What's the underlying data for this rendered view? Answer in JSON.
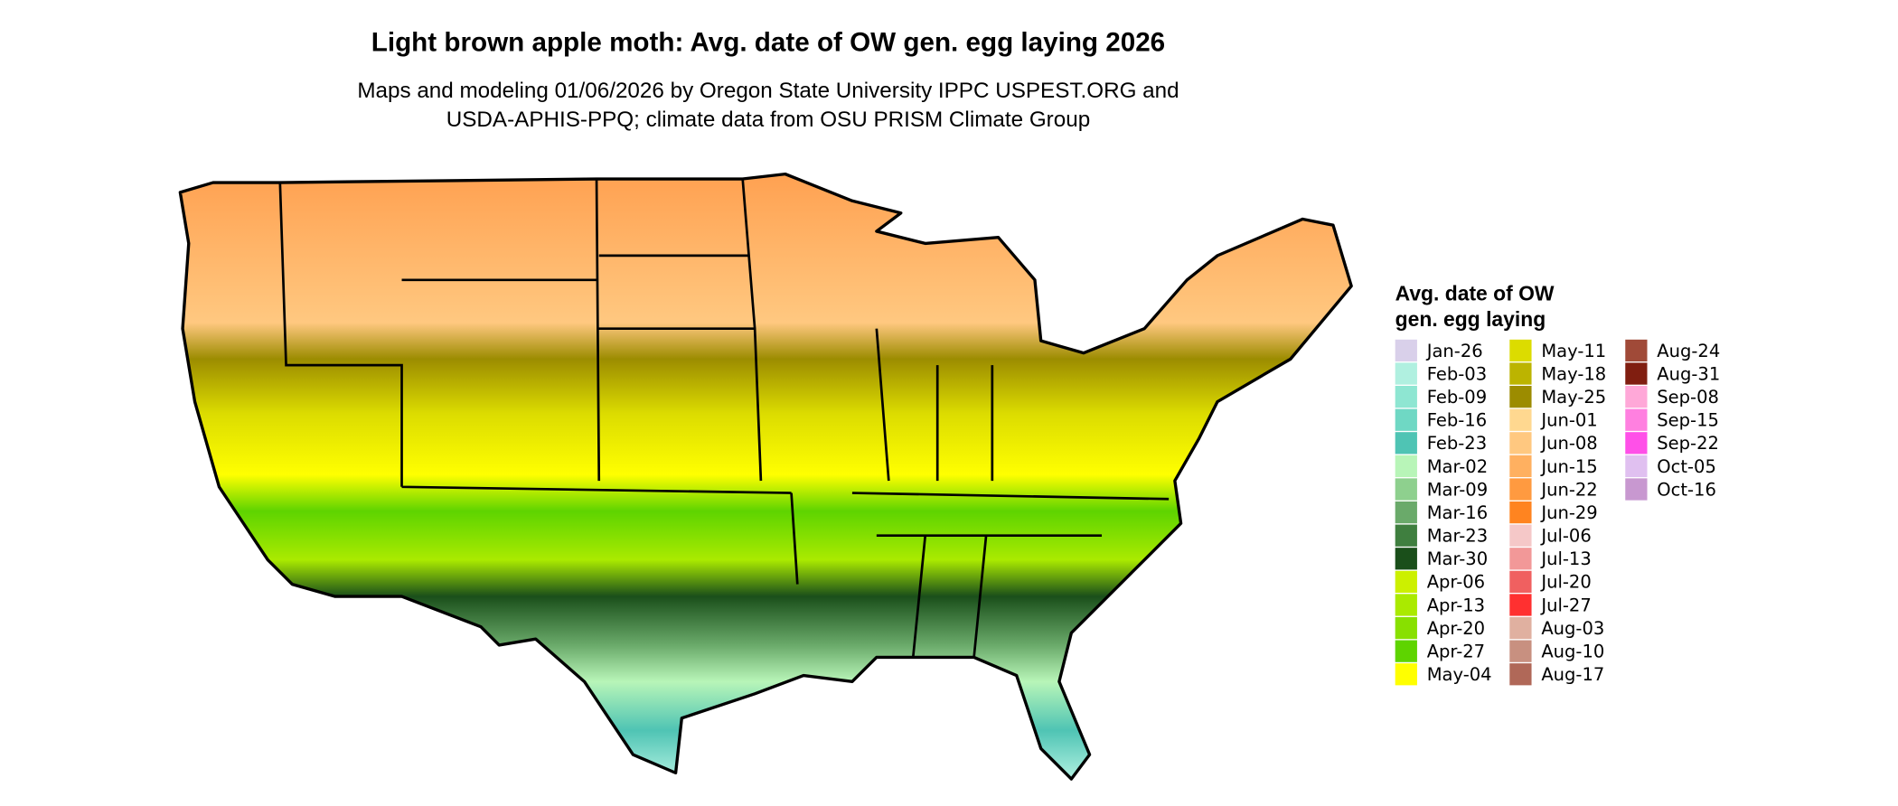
{
  "header": {
    "title": "Light brown apple moth: Avg. date of OW gen. egg laying 2026",
    "subtitle": [
      "Maps and modeling 01/06/2026 by Oregon State University IPPC USPEST.ORG and",
      "USDA-APHIS-PPQ; climate data from OSU PRISM Climate Group"
    ]
  },
  "legend": {
    "title": [
      "Avg. date of OW",
      "gen. egg laying"
    ],
    "items": [
      {
        "label": "Jan-26",
        "color": "#d9d0ea"
      },
      {
        "label": "Feb-03",
        "color": "#b0f0e0"
      },
      {
        "label": "Feb-09",
        "color": "#8ee6d2"
      },
      {
        "label": "Feb-16",
        "color": "#6fd8c4"
      },
      {
        "label": "Feb-23",
        "color": "#4fc4b4"
      },
      {
        "label": "Mar-02",
        "color": "#b8f5b8"
      },
      {
        "label": "Mar-09",
        "color": "#8ed08e"
      },
      {
        "label": "Mar-16",
        "color": "#6aaa6a"
      },
      {
        "label": "Mar-23",
        "color": "#3f7f3f"
      },
      {
        "label": "Mar-30",
        "color": "#1a4f1a"
      },
      {
        "label": "Apr-06",
        "color": "#ccf000"
      },
      {
        "label": "Apr-13",
        "color": "#aaea00"
      },
      {
        "label": "Apr-20",
        "color": "#88e000"
      },
      {
        "label": "Apr-27",
        "color": "#5ed400"
      },
      {
        "label": "May-04",
        "color": "#ffff00"
      },
      {
        "label": "May-11",
        "color": "#dcdc00"
      },
      {
        "label": "May-18",
        "color": "#bcb400"
      },
      {
        "label": "May-25",
        "color": "#9c8c00"
      },
      {
        "label": "Jun-01",
        "color": "#ffd890"
      },
      {
        "label": "Jun-08",
        "color": "#ffc880"
      },
      {
        "label": "Jun-15",
        "color": "#ffb060"
      },
      {
        "label": "Jun-22",
        "color": "#ff9a40"
      },
      {
        "label": "Jun-29",
        "color": "#ff8420"
      },
      {
        "label": "Jul-06",
        "color": "#f5c8c8"
      },
      {
        "label": "Jul-13",
        "color": "#f29898"
      },
      {
        "label": "Jul-20",
        "color": "#f06060"
      },
      {
        "label": "Jul-27",
        "color": "#ff3030"
      },
      {
        "label": "Aug-03",
        "color": "#e0b0a0"
      },
      {
        "label": "Aug-10",
        "color": "#c89080"
      },
      {
        "label": "Aug-17",
        "color": "#b06858"
      },
      {
        "label": "Aug-24",
        "color": "#a04a38"
      },
      {
        "label": "Aug-31",
        "color": "#801e10"
      },
      {
        "label": "Sep-08",
        "color": "#ffa8d8"
      },
      {
        "label": "Sep-15",
        "color": "#ff80e0"
      },
      {
        "label": "Sep-22",
        "color": "#ff50e8"
      },
      {
        "label": "Oct-05",
        "color": "#e0c0f0"
      },
      {
        "label": "Oct-16",
        "color": "#c898d0"
      }
    ]
  }
}
